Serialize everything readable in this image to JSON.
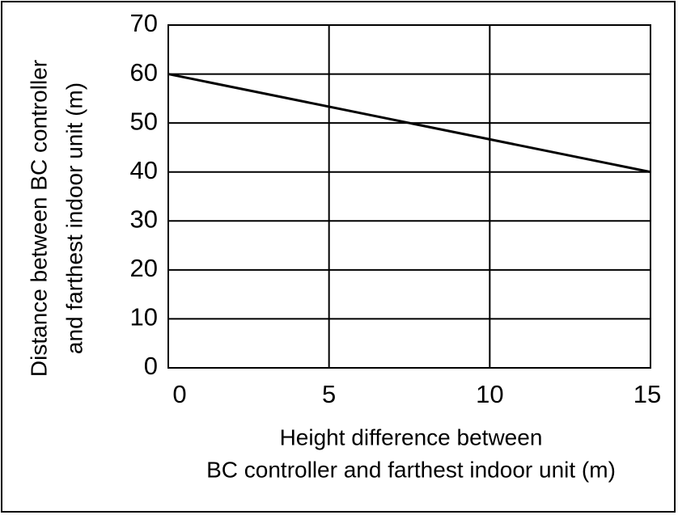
{
  "chart_data": {
    "type": "line",
    "xlabel": [
      "Height difference between",
      "BC controller and farthest indoor unit (m)"
    ],
    "ylabel": [
      "Distance between BC controller",
      "and farthest indoor unit (m)"
    ],
    "x": [
      0,
      15
    ],
    "series": [
      {
        "color": "#000000",
        "values": [
          60,
          40
        ]
      }
    ],
    "xlim": [
      0,
      15
    ],
    "xticks": [
      0,
      5,
      10,
      15
    ],
    "ylim": [
      0,
      70
    ],
    "yticks": [
      0,
      10,
      20,
      30,
      40,
      50,
      60,
      70
    ],
    "grid": true
  }
}
